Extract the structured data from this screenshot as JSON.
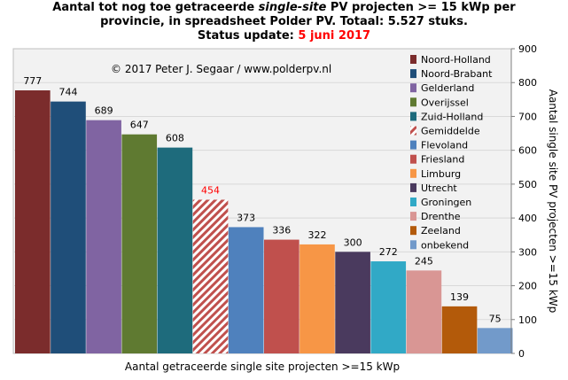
{
  "title": {
    "line1_pre": "Aantal tot nog toe getraceerde ",
    "line1_em": "single-site",
    "line1_post": " PV projecten >= 15 kWp per",
    "line2": "provincie, in spreadsheet Polder PV. Totaal: 5.527 stuks.",
    "line3_label": "Status update: ",
    "line3_date": "5 juni 2017"
  },
  "copyright": "© 2017 Peter J. Segaar / www.polderpv.nl",
  "chart_data": {
    "type": "bar",
    "categories": [
      "Noord-Holland",
      "Noord-Brabant",
      "Gelderland",
      "Overijssel",
      "Zuid-Holland",
      "Gemiddelde",
      "Flevoland",
      "Friesland",
      "Limburg",
      "Utrecht",
      "Groningen",
      "Drenthe",
      "Zeeland",
      "onbekend"
    ],
    "values": [
      777,
      744,
      689,
      647,
      608,
      454,
      373,
      336,
      322,
      300,
      272,
      245,
      139,
      75
    ],
    "value_labels": [
      "777",
      "744",
      "689",
      "647",
      "608",
      "454",
      "373",
      "336",
      "322",
      "300",
      "272",
      "245",
      "139",
      "75"
    ],
    "colors": [
      "#7b2c2c",
      "#1f4e79",
      "#8064a2",
      "#5f7a31",
      "#1e6b7c",
      "#c0504d",
      "#4f81bd",
      "#c0504d",
      "#f79646",
      "#4a3a5e",
      "#31a9c6",
      "#d99694",
      "#b35a0a",
      "#729aca"
    ],
    "hatched_index": 5,
    "highlight_label_color": "#ff0000",
    "ylim": [
      0,
      900
    ],
    "y_ticks": [
      "0",
      "100",
      "200",
      "300",
      "400",
      "500",
      "600",
      "700",
      "800",
      "900"
    ],
    "ylabel": "Aantal single site PV projecten >=15 kWp",
    "xlabel": "Aantal getraceerde single site projecten >=15 kWp",
    "y_axis_side": "right",
    "grid": true,
    "legend_position": "right",
    "background": "#f2f2f2"
  }
}
